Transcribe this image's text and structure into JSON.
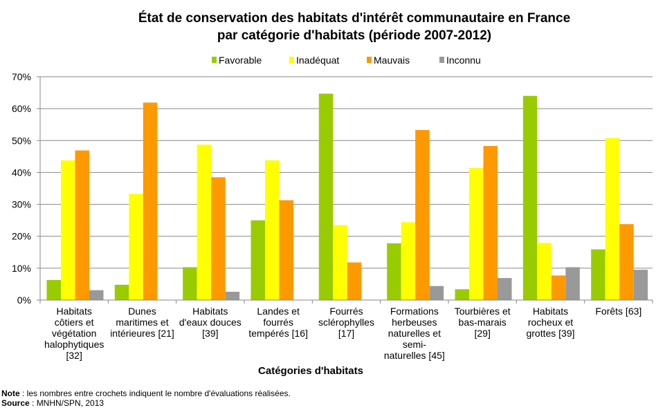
{
  "chart_data": {
    "type": "bar",
    "title_lines": [
      "État de conservation des habitats d'intérêt communautaire en France",
      "par catégorie d'habitats (période 2007-2012)"
    ],
    "xlabel": "Catégories d'habitats",
    "ylabel": "",
    "ylim": [
      0,
      70
    ],
    "yticks": [
      "0%",
      "10%",
      "20%",
      "30%",
      "40%",
      "50%",
      "60%",
      "70%"
    ],
    "grid": true,
    "legend_position": "top",
    "categories": [
      [
        "Habitats",
        "côtiers et",
        "végétation",
        "halophytiques",
        "[32]"
      ],
      [
        "Dunes",
        "maritimes et",
        "intérieures [21]"
      ],
      [
        "Habitats",
        "d'eaux douces",
        "[39]"
      ],
      [
        "Landes et",
        "fourrés",
        "tempérés [16]"
      ],
      [
        "Fourrés",
        "sclérophylles",
        "[17]"
      ],
      [
        "Formations",
        "herbeuses",
        "naturelles et",
        "semi-",
        "naturelles [45]"
      ],
      [
        "Tourbières et",
        "bas-marais",
        "[29]"
      ],
      [
        "Habitats",
        "rocheux et",
        "grottes [39]"
      ],
      [
        "Forêts [63]"
      ]
    ],
    "series": [
      {
        "name": "Favorable",
        "color": "#99cc00",
        "values": [
          6.3,
          4.8,
          10.3,
          25,
          64.7,
          17.8,
          3.4,
          64,
          15.9
        ]
      },
      {
        "name": "Inadéquat",
        "color": "#ffff00",
        "values": [
          43.8,
          33.3,
          48.7,
          43.8,
          23.5,
          24.4,
          41.4,
          17.9,
          50.8
        ]
      },
      {
        "name": "Mauvais",
        "color": "#ff9900",
        "values": [
          46.9,
          61.9,
          38.5,
          31.3,
          11.8,
          53.3,
          48.3,
          7.7,
          23.8
        ]
      },
      {
        "name": "Inconnu",
        "color": "#999999",
        "values": [
          3.1,
          0,
          2.6,
          0,
          0,
          4.4,
          6.9,
          10.3,
          9.5
        ]
      }
    ]
  },
  "footer": {
    "note_label": "Note",
    "note_text": " : les nombres entre crochets indiquent le nombre d'évaluations  réalisées.",
    "source_label": "Source",
    "source_text": " : MNHN/SPN,  2013"
  }
}
